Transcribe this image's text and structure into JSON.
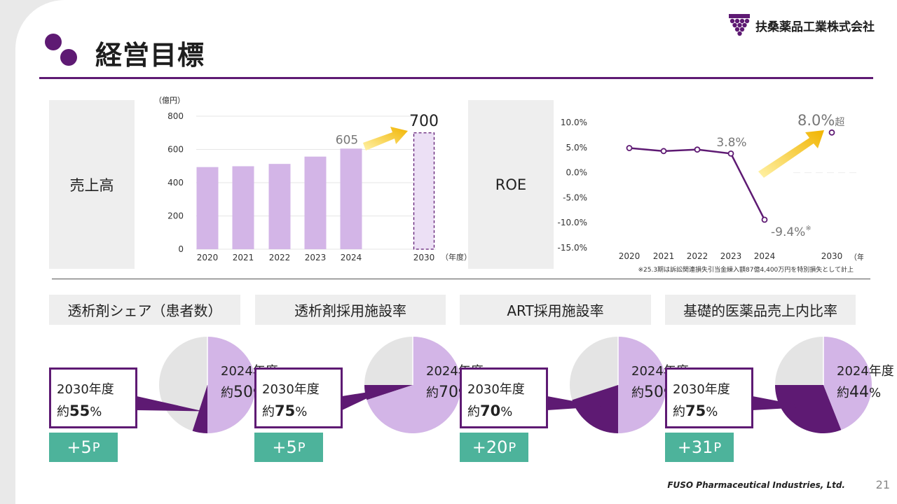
{
  "page_title": "経営目標",
  "company_name": "扶桑薬品工業株式会社",
  "footer_brand": "FUSO Pharmaceutical Industries, Ltd.",
  "page_number": "21",
  "colors": {
    "purple_dark": "#5e1a73",
    "purple_light": "#d3b5e7",
    "purple_pale": "#ece0f5",
    "gray_light": "#e4e4e4",
    "green": "#4db39b",
    "arrow_gold": "#f1b400"
  },
  "icons": [
    "grape-logo-icon",
    "title-dots-icon",
    "growth-arrow-icon"
  ],
  "sections": {
    "sales_label": "売上高",
    "roe_label": "ROE",
    "kpi_headers": [
      "透析剤シェア（患者数）",
      "透析剤採用施設率",
      "ART採用施設率",
      "基礎的医薬品売上内比率"
    ]
  },
  "chart_data": [
    {
      "type": "bar",
      "title": "売上高",
      "unit_label": "（億円）",
      "x_unit_label": "（年度）",
      "categories": [
        "2020",
        "2021",
        "2022",
        "2023",
        "2024",
        "2030"
      ],
      "values": [
        494,
        499,
        513,
        557,
        605,
        700
      ],
      "target_category": "2030",
      "data_labels": {
        "2024": "605",
        "2030": "700"
      },
      "yticks": [
        "0",
        "200",
        "400",
        "600",
        "800"
      ],
      "ylim": [
        0,
        800
      ],
      "grid": true
    },
    {
      "type": "line",
      "title": "ROE",
      "x_unit_label": "（年度）",
      "categories": [
        "2020",
        "2021",
        "2022",
        "2023",
        "2024",
        "2030"
      ],
      "values": [
        4.9,
        4.3,
        4.6,
        3.8,
        -9.4,
        8.0
      ],
      "labels": {
        "2023": "3.8%",
        "2024": "-9.4%",
        "2030": "8.0%"
      },
      "label_suffix_2030": "超",
      "label_mark_2024": "※",
      "yticks": [
        "10.0%",
        "5.0%",
        "0.0%",
        "-5.0%",
        "-10.0%",
        "-15.0%"
      ],
      "ylim": [
        -15,
        10
      ],
      "note": "※25.3期は訴訟関連損失引当金繰入額87億4,400万円を特別損失として計上"
    },
    {
      "type": "pie",
      "title": "透析剤シェア（患者数）",
      "current_label": "2024年度",
      "current_prefix": "約",
      "current_value": "50",
      "target_label": "2030年度",
      "target_value": "55",
      "gain": "+5",
      "gain_unit": "P",
      "current_pct": 50,
      "target_pct": 55,
      "percent_sign": "%"
    },
    {
      "type": "pie",
      "title": "透析剤採用施設率",
      "current_label": "2024年度",
      "current_prefix": "約",
      "current_value": "70",
      "target_label": "2030年度",
      "target_value": "75",
      "gain": "+5",
      "gain_unit": "P",
      "current_pct": 70,
      "target_pct": 75,
      "percent_sign": "%"
    },
    {
      "type": "pie",
      "title": "ART採用施設率",
      "current_label": "2024年度",
      "current_prefix": "約",
      "current_value": "50",
      "target_label": "2030年度",
      "target_value": "70",
      "gain": "+20",
      "gain_unit": "P",
      "current_pct": 50,
      "target_pct": 70,
      "percent_sign": "%"
    },
    {
      "type": "pie",
      "title": "基礎的医薬品売上内比率",
      "current_label": "2024年度",
      "current_prefix": "約",
      "current_value": "44",
      "target_label": "2030年度",
      "target_value": "75",
      "gain": "+31",
      "gain_unit": "P",
      "current_pct": 44,
      "target_pct": 75,
      "percent_sign": "%"
    }
  ]
}
